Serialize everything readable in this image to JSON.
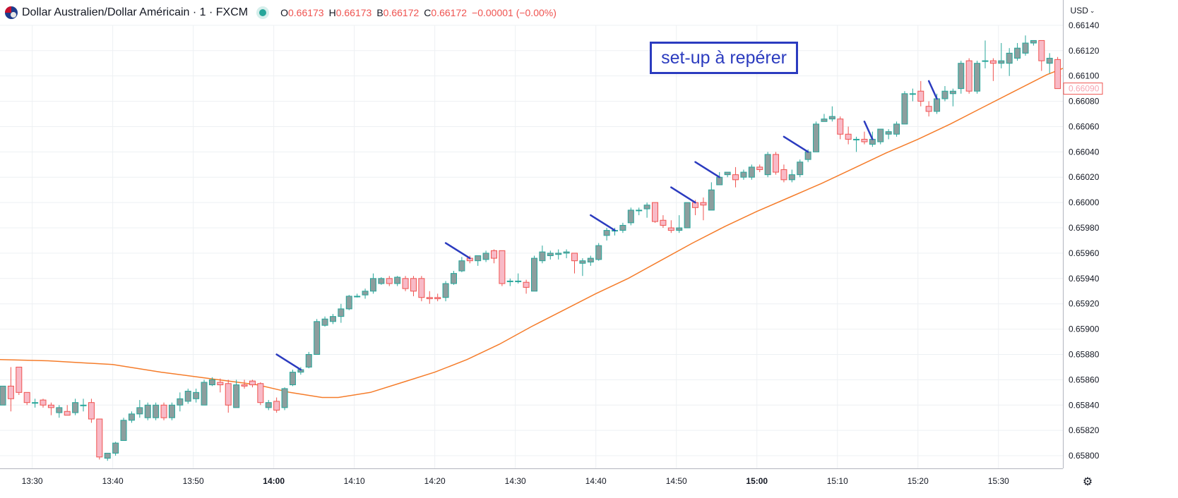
{
  "header": {
    "symbol": "Dollar Australien/Dollar Américain · 1 · FXCM",
    "open_label": "O",
    "open": "0.66173",
    "high_label": "H",
    "high": "0.66173",
    "low_label": "B",
    "low": "0.66172",
    "close_label": "C",
    "close": "0.66172",
    "change": "−0.00001 (−0.00%)"
  },
  "currency": "USD",
  "annotation": "set-up à repérer",
  "price_badge": "0.66090",
  "colors": {
    "up": "#26a69a",
    "up_body": "#8c9e9e",
    "down": "#ef5350",
    "down_body": "#f8bac7",
    "ma": "#f57c2a",
    "annotation": "#2b3bbf"
  },
  "chart_data": {
    "type": "candlestick",
    "y_range": [
      0.6579,
      0.6616
    ],
    "y_ticks": [
      "0.66140",
      "0.66120",
      "0.66100",
      "0.66080",
      "0.66060",
      "0.66040",
      "0.66020",
      "0.66000",
      "0.65980",
      "0.65960",
      "0.65940",
      "0.65920",
      "0.65900",
      "0.65880",
      "0.65860",
      "0.65840",
      "0.65820",
      "0.65800"
    ],
    "x_range_minutes": [
      806,
      938
    ],
    "x_ticks": [
      {
        "label": "13:30",
        "minutes": 810,
        "bold": false
      },
      {
        "label": "13:40",
        "minutes": 820,
        "bold": false
      },
      {
        "label": "13:50",
        "minutes": 830,
        "bold": false
      },
      {
        "label": "14:00",
        "minutes": 840,
        "bold": true
      },
      {
        "label": "14:10",
        "minutes": 850,
        "bold": false
      },
      {
        "label": "14:20",
        "minutes": 860,
        "bold": false
      },
      {
        "label": "14:30",
        "minutes": 870,
        "bold": false
      },
      {
        "label": "14:40",
        "minutes": 880,
        "bold": false
      },
      {
        "label": "14:50",
        "minutes": 890,
        "bold": false
      },
      {
        "label": "15:00",
        "minutes": 900,
        "bold": true
      },
      {
        "label": "15:10",
        "minutes": 910,
        "bold": false
      },
      {
        "label": "15:20",
        "minutes": 920,
        "bold": false
      },
      {
        "label": "15:30",
        "minutes": 930,
        "bold": false
      }
    ],
    "candles": [
      {
        "o": 0.6584,
        "h": 0.65855,
        "l": 0.6584,
        "c": 0.65855
      },
      {
        "o": 0.65855,
        "h": 0.6587,
        "l": 0.65835,
        "c": 0.65845
      },
      {
        "o": 0.6587,
        "h": 0.6587,
        "l": 0.65848,
        "c": 0.6585
      },
      {
        "o": 0.6585,
        "h": 0.6585,
        "l": 0.6584,
        "c": 0.65842
      },
      {
        "o": 0.65842,
        "h": 0.65845,
        "l": 0.65838,
        "c": 0.65842
      },
      {
        "o": 0.65844,
        "h": 0.65845,
        "l": 0.65838,
        "c": 0.6584
      },
      {
        "o": 0.6584,
        "h": 0.65842,
        "l": 0.65832,
        "c": 0.65838
      },
      {
        "o": 0.65834,
        "h": 0.6584,
        "l": 0.6583,
        "c": 0.65838
      },
      {
        "o": 0.65835,
        "h": 0.6584,
        "l": 0.65832,
        "c": 0.65832
      },
      {
        "o": 0.65834,
        "h": 0.65845,
        "l": 0.65832,
        "c": 0.65842
      },
      {
        "o": 0.6584,
        "h": 0.65845,
        "l": 0.65835,
        "c": 0.6584
      },
      {
        "o": 0.65842,
        "h": 0.65845,
        "l": 0.65826,
        "c": 0.65829
      },
      {
        "o": 0.65829,
        "h": 0.65829,
        "l": 0.65797,
        "c": 0.65799
      },
      {
        "o": 0.65798,
        "h": 0.65802,
        "l": 0.65796,
        "c": 0.65802
      },
      {
        "o": 0.65802,
        "h": 0.65811,
        "l": 0.658,
        "c": 0.6581
      },
      {
        "o": 0.65812,
        "h": 0.6583,
        "l": 0.65812,
        "c": 0.65828
      },
      {
        "o": 0.65828,
        "h": 0.65835,
        "l": 0.65826,
        "c": 0.65833
      },
      {
        "o": 0.65833,
        "h": 0.65844,
        "l": 0.6583,
        "c": 0.65838
      },
      {
        "o": 0.6583,
        "h": 0.65842,
        "l": 0.65828,
        "c": 0.6584
      },
      {
        "o": 0.6583,
        "h": 0.65842,
        "l": 0.65828,
        "c": 0.6584
      },
      {
        "o": 0.6584,
        "h": 0.65842,
        "l": 0.65828,
        "c": 0.6583
      },
      {
        "o": 0.6583,
        "h": 0.65842,
        "l": 0.65828,
        "c": 0.6584
      },
      {
        "o": 0.6584,
        "h": 0.6585,
        "l": 0.65835,
        "c": 0.65845
      },
      {
        "o": 0.65843,
        "h": 0.65853,
        "l": 0.65841,
        "c": 0.65851
      },
      {
        "o": 0.65845,
        "h": 0.65853,
        "l": 0.65842,
        "c": 0.6585
      },
      {
        "o": 0.6584,
        "h": 0.6586,
        "l": 0.6584,
        "c": 0.65858
      },
      {
        "o": 0.65856,
        "h": 0.65862,
        "l": 0.65855,
        "c": 0.6586
      },
      {
        "o": 0.65858,
        "h": 0.65861,
        "l": 0.6585,
        "c": 0.65856
      },
      {
        "o": 0.65857,
        "h": 0.6586,
        "l": 0.65834,
        "c": 0.6584
      },
      {
        "o": 0.65838,
        "h": 0.6586,
        "l": 0.65838,
        "c": 0.65856
      },
      {
        "o": 0.65856,
        "h": 0.6586,
        "l": 0.65853,
        "c": 0.65855
      },
      {
        "o": 0.65859,
        "h": 0.6586,
        "l": 0.65854,
        "c": 0.65856
      },
      {
        "o": 0.65857,
        "h": 0.65858,
        "l": 0.6584,
        "c": 0.65842
      },
      {
        "o": 0.65838,
        "h": 0.65844,
        "l": 0.65836,
        "c": 0.65842
      },
      {
        "o": 0.65843,
        "h": 0.65846,
        "l": 0.65834,
        "c": 0.65836
      },
      {
        "o": 0.65838,
        "h": 0.65854,
        "l": 0.65836,
        "c": 0.65853
      },
      {
        "o": 0.65856,
        "h": 0.65868,
        "l": 0.65855,
        "c": 0.65866
      },
      {
        "o": 0.65866,
        "h": 0.6587,
        "l": 0.65864,
        "c": 0.65868
      },
      {
        "o": 0.6587,
        "h": 0.65882,
        "l": 0.65869,
        "c": 0.6588
      },
      {
        "o": 0.6588,
        "h": 0.65908,
        "l": 0.6588,
        "c": 0.65906
      },
      {
        "o": 0.65903,
        "h": 0.6591,
        "l": 0.65902,
        "c": 0.65908
      },
      {
        "o": 0.65906,
        "h": 0.65912,
        "l": 0.65904,
        "c": 0.6591
      },
      {
        "o": 0.6591,
        "h": 0.6592,
        "l": 0.65905,
        "c": 0.65916
      },
      {
        "o": 0.65916,
        "h": 0.65927,
        "l": 0.65915,
        "c": 0.65926
      },
      {
        "o": 0.65926,
        "h": 0.65928,
        "l": 0.65925,
        "c": 0.65926
      },
      {
        "o": 0.65927,
        "h": 0.65932,
        "l": 0.65924,
        "c": 0.6593
      },
      {
        "o": 0.6593,
        "h": 0.65944,
        "l": 0.65928,
        "c": 0.6594
      },
      {
        "o": 0.65936,
        "h": 0.65941,
        "l": 0.65935,
        "c": 0.6594
      },
      {
        "o": 0.6594,
        "h": 0.65942,
        "l": 0.65934,
        "c": 0.65936
      },
      {
        "o": 0.65936,
        "h": 0.65942,
        "l": 0.65934,
        "c": 0.65941
      },
      {
        "o": 0.6594,
        "h": 0.65942,
        "l": 0.6593,
        "c": 0.65932
      },
      {
        "o": 0.6594,
        "h": 0.65942,
        "l": 0.65926,
        "c": 0.6593
      },
      {
        "o": 0.6594,
        "h": 0.65942,
        "l": 0.65922,
        "c": 0.65925
      },
      {
        "o": 0.65925,
        "h": 0.6593,
        "l": 0.6592,
        "c": 0.65924
      },
      {
        "o": 0.65925,
        "h": 0.65928,
        "l": 0.65922,
        "c": 0.65924
      },
      {
        "o": 0.65925,
        "h": 0.65938,
        "l": 0.65922,
        "c": 0.65936
      },
      {
        "o": 0.65936,
        "h": 0.65946,
        "l": 0.65935,
        "c": 0.65944
      },
      {
        "o": 0.65946,
        "h": 0.65957,
        "l": 0.65945,
        "c": 0.65954
      },
      {
        "o": 0.65956,
        "h": 0.65958,
        "l": 0.65952,
        "c": 0.65954
      },
      {
        "o": 0.65954,
        "h": 0.65958,
        "l": 0.6595,
        "c": 0.65958
      },
      {
        "o": 0.65955,
        "h": 0.65962,
        "l": 0.65953,
        "c": 0.6596
      },
      {
        "o": 0.65962,
        "h": 0.65963,
        "l": 0.65952,
        "c": 0.65956
      },
      {
        "o": 0.65962,
        "h": 0.65962,
        "l": 0.65934,
        "c": 0.65936
      },
      {
        "o": 0.65938,
        "h": 0.6594,
        "l": 0.65934,
        "c": 0.65938
      },
      {
        "o": 0.65938,
        "h": 0.65944,
        "l": 0.65936,
        "c": 0.65938
      },
      {
        "o": 0.65937,
        "h": 0.65939,
        "l": 0.65928,
        "c": 0.65933
      },
      {
        "o": 0.6593,
        "h": 0.65958,
        "l": 0.6593,
        "c": 0.65956
      },
      {
        "o": 0.65954,
        "h": 0.65966,
        "l": 0.65952,
        "c": 0.65961
      },
      {
        "o": 0.65958,
        "h": 0.65962,
        "l": 0.65955,
        "c": 0.6596
      },
      {
        "o": 0.65959,
        "h": 0.65963,
        "l": 0.65955,
        "c": 0.6596
      },
      {
        "o": 0.6596,
        "h": 0.65963,
        "l": 0.65956,
        "c": 0.65961
      },
      {
        "o": 0.6596,
        "h": 0.6596,
        "l": 0.65944,
        "c": 0.65954
      },
      {
        "o": 0.65952,
        "h": 0.65956,
        "l": 0.65942,
        "c": 0.65954
      },
      {
        "o": 0.65953,
        "h": 0.65958,
        "l": 0.6595,
        "c": 0.65956
      },
      {
        "o": 0.65955,
        "h": 0.65968,
        "l": 0.65954,
        "c": 0.65966
      },
      {
        "o": 0.65974,
        "h": 0.6598,
        "l": 0.6597,
        "c": 0.65978
      },
      {
        "o": 0.65978,
        "h": 0.6598,
        "l": 0.65974,
        "c": 0.65978
      },
      {
        "o": 0.65978,
        "h": 0.65984,
        "l": 0.65976,
        "c": 0.65982
      },
      {
        "o": 0.65984,
        "h": 0.65996,
        "l": 0.65982,
        "c": 0.65994
      },
      {
        "o": 0.65994,
        "h": 0.65996,
        "l": 0.6599,
        "c": 0.65994
      },
      {
        "o": 0.65995,
        "h": 0.66,
        "l": 0.65988,
        "c": 0.65998
      },
      {
        "o": 0.66,
        "h": 0.66,
        "l": 0.65984,
        "c": 0.65985
      },
      {
        "o": 0.65986,
        "h": 0.6599,
        "l": 0.6598,
        "c": 0.65982
      },
      {
        "o": 0.6598,
        "h": 0.65986,
        "l": 0.65976,
        "c": 0.65978
      },
      {
        "o": 0.65978,
        "h": 0.6599,
        "l": 0.65976,
        "c": 0.6598
      },
      {
        "o": 0.6598,
        "h": 0.66,
        "l": 0.6598,
        "c": 0.66
      },
      {
        "o": 0.66,
        "h": 0.66002,
        "l": 0.6599,
        "c": 0.65996
      },
      {
        "o": 0.66,
        "h": 0.66004,
        "l": 0.65986,
        "c": 0.65998
      },
      {
        "o": 0.65994,
        "h": 0.66016,
        "l": 0.65994,
        "c": 0.6601
      },
      {
        "o": 0.66014,
        "h": 0.66024,
        "l": 0.66014,
        "c": 0.6602
      },
      {
        "o": 0.66022,
        "h": 0.66024,
        "l": 0.6602,
        "c": 0.66024
      },
      {
        "o": 0.66022,
        "h": 0.66028,
        "l": 0.66012,
        "c": 0.66018
      },
      {
        "o": 0.6602,
        "h": 0.66026,
        "l": 0.66018,
        "c": 0.66024
      },
      {
        "o": 0.6602,
        "h": 0.6603,
        "l": 0.66018,
        "c": 0.66028
      },
      {
        "o": 0.66028,
        "h": 0.6603,
        "l": 0.66024,
        "c": 0.66026
      },
      {
        "o": 0.66022,
        "h": 0.6604,
        "l": 0.6602,
        "c": 0.66038
      },
      {
        "o": 0.66038,
        "h": 0.6604,
        "l": 0.66022,
        "c": 0.66024
      },
      {
        "o": 0.66026,
        "h": 0.6603,
        "l": 0.66016,
        "c": 0.66018
      },
      {
        "o": 0.66018,
        "h": 0.66026,
        "l": 0.66016,
        "c": 0.66022
      },
      {
        "o": 0.66022,
        "h": 0.66034,
        "l": 0.6602,
        "c": 0.66032
      },
      {
        "o": 0.66034,
        "h": 0.66042,
        "l": 0.66032,
        "c": 0.6604
      },
      {
        "o": 0.6604,
        "h": 0.66064,
        "l": 0.6604,
        "c": 0.66062
      },
      {
        "o": 0.66064,
        "h": 0.6607,
        "l": 0.66064,
        "c": 0.66066
      },
      {
        "o": 0.66066,
        "h": 0.66076,
        "l": 0.66064,
        "c": 0.66068
      },
      {
        "o": 0.66066,
        "h": 0.66068,
        "l": 0.6605,
        "c": 0.66054
      },
      {
        "o": 0.66054,
        "h": 0.6606,
        "l": 0.66046,
        "c": 0.6605
      },
      {
        "o": 0.6605,
        "h": 0.66052,
        "l": 0.6604,
        "c": 0.6605
      },
      {
        "o": 0.6605,
        "h": 0.66056,
        "l": 0.66046,
        "c": 0.66048
      },
      {
        "o": 0.66046,
        "h": 0.66056,
        "l": 0.66044,
        "c": 0.6605
      },
      {
        "o": 0.66048,
        "h": 0.66058,
        "l": 0.66046,
        "c": 0.66058
      },
      {
        "o": 0.66054,
        "h": 0.66058,
        "l": 0.6605,
        "c": 0.66056
      },
      {
        "o": 0.66054,
        "h": 0.66064,
        "l": 0.66052,
        "c": 0.66062
      },
      {
        "o": 0.66062,
        "h": 0.66088,
        "l": 0.66062,
        "c": 0.66086
      },
      {
        "o": 0.66086,
        "h": 0.6609,
        "l": 0.6608,
        "c": 0.66086
      },
      {
        "o": 0.66088,
        "h": 0.66096,
        "l": 0.66076,
        "c": 0.6608
      },
      {
        "o": 0.66076,
        "h": 0.6608,
        "l": 0.66068,
        "c": 0.66072
      },
      {
        "o": 0.66072,
        "h": 0.66086,
        "l": 0.6607,
        "c": 0.66082
      },
      {
        "o": 0.66082,
        "h": 0.66092,
        "l": 0.6608,
        "c": 0.66088
      },
      {
        "o": 0.66086,
        "h": 0.6609,
        "l": 0.66076,
        "c": 0.66088
      },
      {
        "o": 0.6609,
        "h": 0.66112,
        "l": 0.66086,
        "c": 0.6611
      },
      {
        "o": 0.66112,
        "h": 0.66114,
        "l": 0.66086,
        "c": 0.66088
      },
      {
        "o": 0.66088,
        "h": 0.66112,
        "l": 0.66086,
        "c": 0.6611
      },
      {
        "o": 0.66112,
        "h": 0.66128,
        "l": 0.66106,
        "c": 0.66112
      },
      {
        "o": 0.66112,
        "h": 0.66114,
        "l": 0.66096,
        "c": 0.6611
      },
      {
        "o": 0.6611,
        "h": 0.66126,
        "l": 0.66106,
        "c": 0.66112
      },
      {
        "o": 0.6611,
        "h": 0.66122,
        "l": 0.661,
        "c": 0.66118
      },
      {
        "o": 0.66114,
        "h": 0.66126,
        "l": 0.66112,
        "c": 0.66122
      },
      {
        "o": 0.66118,
        "h": 0.66132,
        "l": 0.66116,
        "c": 0.66126
      },
      {
        "o": 0.66126,
        "h": 0.66128,
        "l": 0.66124,
        "c": 0.66128
      },
      {
        "o": 0.66128,
        "h": 0.66128,
        "l": 0.66104,
        "c": 0.66112
      },
      {
        "o": 0.6611,
        "h": 0.66118,
        "l": 0.66102,
        "c": 0.66114
      },
      {
        "o": 0.66113,
        "h": 0.66115,
        "l": 0.6609,
        "c": 0.6609
      }
    ],
    "moving_average": [
      [
        806,
        0.65876
      ],
      [
        812,
        0.65875
      ],
      [
        820,
        0.65872
      ],
      [
        826,
        0.65866
      ],
      [
        832,
        0.65861
      ],
      [
        838,
        0.65856
      ],
      [
        842,
        0.6585
      ],
      [
        846,
        0.65846
      ],
      [
        848,
        0.65846
      ],
      [
        852,
        0.6585
      ],
      [
        856,
        0.65858
      ],
      [
        860,
        0.65866
      ],
      [
        864,
        0.65876
      ],
      [
        868,
        0.65888
      ],
      [
        872,
        0.65902
      ],
      [
        876,
        0.65915
      ],
      [
        880,
        0.65928
      ],
      [
        884,
        0.6594
      ],
      [
        888,
        0.65954
      ],
      [
        892,
        0.65968
      ],
      [
        896,
        0.65981
      ],
      [
        900,
        0.65993
      ],
      [
        904,
        0.66004
      ],
      [
        908,
        0.66015
      ],
      [
        912,
        0.66027
      ],
      [
        916,
        0.66039
      ],
      [
        920,
        0.6605
      ],
      [
        924,
        0.66062
      ],
      [
        928,
        0.66075
      ],
      [
        932,
        0.66088
      ],
      [
        936,
        0.66101
      ],
      [
        938,
        0.66106
      ]
    ],
    "setup_marks": [
      {
        "candle": 37,
        "start_offset": [
          -3,
          0.00012
        ]
      },
      {
        "candle": 58,
        "start_offset": [
          -3,
          0.00012
        ]
      },
      {
        "candle": 76,
        "start_offset": [
          -3,
          0.00012
        ]
      },
      {
        "candle": 86,
        "start_offset": [
          -3,
          0.00012
        ]
      },
      {
        "candle": 89,
        "start_offset": [
          -3,
          0.00012
        ]
      },
      {
        "candle": 100,
        "start_offset": [
          -3,
          0.00012
        ]
      },
      {
        "candle": 108,
        "start_offset": [
          -1,
          0.00014
        ]
      },
      {
        "candle": 116,
        "start_offset": [
          -1,
          0.00014
        ]
      }
    ]
  }
}
